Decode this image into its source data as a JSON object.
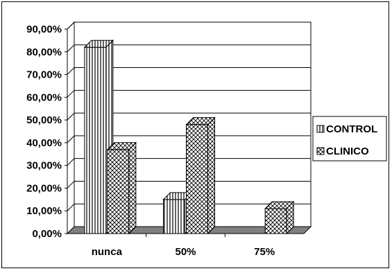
{
  "chart_data": {
    "type": "bar",
    "style": "3d-clustered-column",
    "categories": [
      "nunca",
      "50%",
      "75%"
    ],
    "series": [
      {
        "name": "CONTROL",
        "values": [
          82,
          15,
          0
        ],
        "pattern": "vertical-lines"
      },
      {
        "name": "CLINICO",
        "values": [
          37,
          48,
          11
        ],
        "pattern": "crosshatch"
      }
    ],
    "ylim": [
      0,
      90
    ],
    "yticks": [
      0,
      10,
      20,
      30,
      40,
      50,
      60,
      70,
      80,
      90
    ],
    "ytick_labels": [
      "0,00%",
      "10,00%",
      "20,00%",
      "30,00%",
      "40,00%",
      "50,00%",
      "60,00%",
      "70,00%",
      "80,00%",
      "90,00%"
    ],
    "title": "",
    "xlabel": "",
    "ylabel": "",
    "grid": true,
    "legend_position": "right",
    "colors": {
      "background": "#ffffff",
      "floor": "#808080",
      "wall": "#ffffff",
      "bar_fill": "#ffffff",
      "bar_stroke": "#000000",
      "pattern": "#000000"
    }
  }
}
